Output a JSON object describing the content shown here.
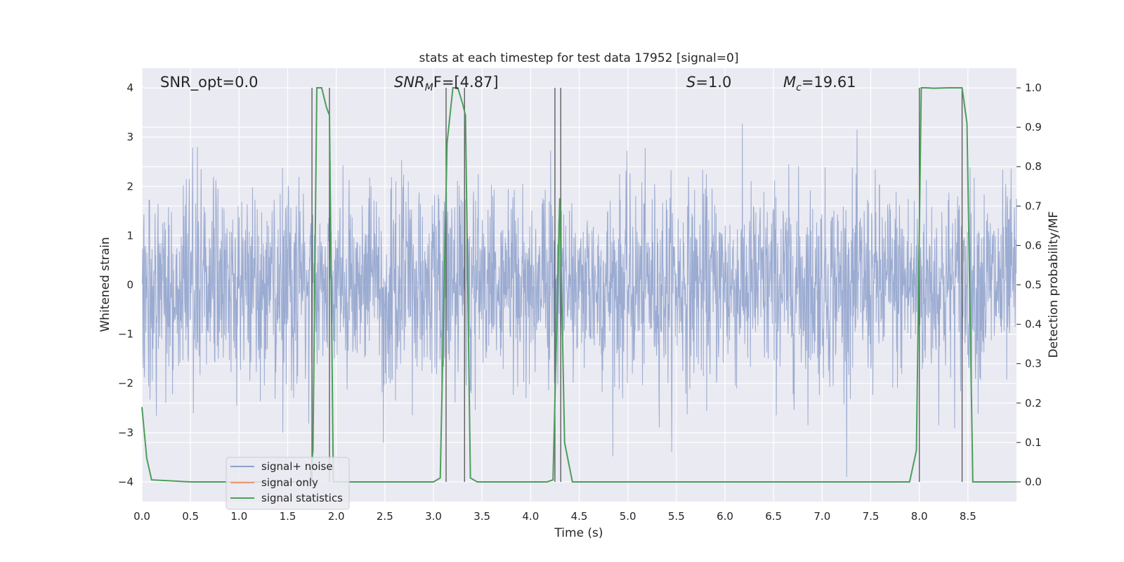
{
  "chart_data": {
    "type": "line",
    "title": "stats at each timestep for test data 17952 [signal=0]",
    "xlabel": "Time (s)",
    "ylabel": "Whitened strain",
    "y2label": "Detection probability/MF",
    "xlim": [
      0.0,
      9.0
    ],
    "ylim": [
      -4.4,
      4.4
    ],
    "y2lim": [
      -0.05,
      1.05
    ],
    "xticks": [
      "0.0",
      "0.5",
      "1.0",
      "1.5",
      "2.0",
      "2.5",
      "3.0",
      "3.5",
      "4.0",
      "4.5",
      "5.0",
      "5.5",
      "6.0",
      "6.5",
      "7.0",
      "7.5",
      "8.0",
      "8.5"
    ],
    "yticks": [
      "4",
      "3",
      "2",
      "1",
      "0",
      "−1",
      "−2",
      "−3",
      "−4"
    ],
    "y2ticks": [
      "1.0",
      "0.9",
      "0.8",
      "0.7",
      "0.6",
      "0.5",
      "0.4",
      "0.3",
      "0.2",
      "0.1",
      "0.0"
    ],
    "grid": true,
    "legend_position": "lower-left",
    "annotations": {
      "snr_opt": "SNR_opt=0.0",
      "snr_mf_label": "SNR",
      "snr_mf_sub": "M",
      "snr_mf_rest": "F=[4.87]",
      "s_label": "S",
      "s_value": "=1.0",
      "mc_label": "M",
      "mc_sub": "c",
      "mc_value": "=19.61"
    },
    "series": [
      {
        "name": "signal+ noise",
        "color": "#8da0cb",
        "description_type": "whitened strain noise, roughly Gaussian, amplitude mostly within ±2, peaks near ±3"
      },
      {
        "name": "signal only",
        "color": "#e39c6e",
        "values": []
      },
      {
        "name": "signal statistics",
        "color": "#4c9e5a",
        "x": [
          0.0,
          0.05,
          0.1,
          0.5,
          1.0,
          1.5,
          1.73,
          1.76,
          1.8,
          1.85,
          1.9,
          1.93,
          1.97,
          2.0,
          2.5,
          3.0,
          3.07,
          3.14,
          3.2,
          3.25,
          3.3,
          3.33,
          3.38,
          3.45,
          4.0,
          4.17,
          4.23,
          4.3,
          4.35,
          4.43,
          4.48,
          5.0,
          6.0,
          7.0,
          7.9,
          7.97,
          8.02,
          8.07,
          8.15,
          8.3,
          8.44,
          8.49,
          8.55,
          8.6,
          8.7,
          9.0
        ],
        "values": [
          0.19,
          0.06,
          0.005,
          0.0,
          0.0,
          0.0,
          0.0,
          0.08,
          1.0,
          1.0,
          0.95,
          0.93,
          0.0,
          0.0,
          0.0,
          0.0,
          0.01,
          0.86,
          1.0,
          1.0,
          0.96,
          0.93,
          0.01,
          0.0,
          0.0,
          0.0,
          0.005,
          0.72,
          0.1,
          0.0,
          0.0,
          0.0,
          0.0,
          0.0,
          0.0,
          0.08,
          1.0,
          1.0,
          0.999,
          1.0,
          1.0,
          0.91,
          0.0,
          0.0,
          0.0,
          0.0
        ]
      }
    ],
    "vertical_lines": [
      1.75,
      1.93,
      3.13,
      3.32,
      4.25,
      4.31,
      8.0,
      8.44
    ],
    "series_names": [
      "signal+ noise",
      "signal only",
      "signal statistics"
    ]
  }
}
